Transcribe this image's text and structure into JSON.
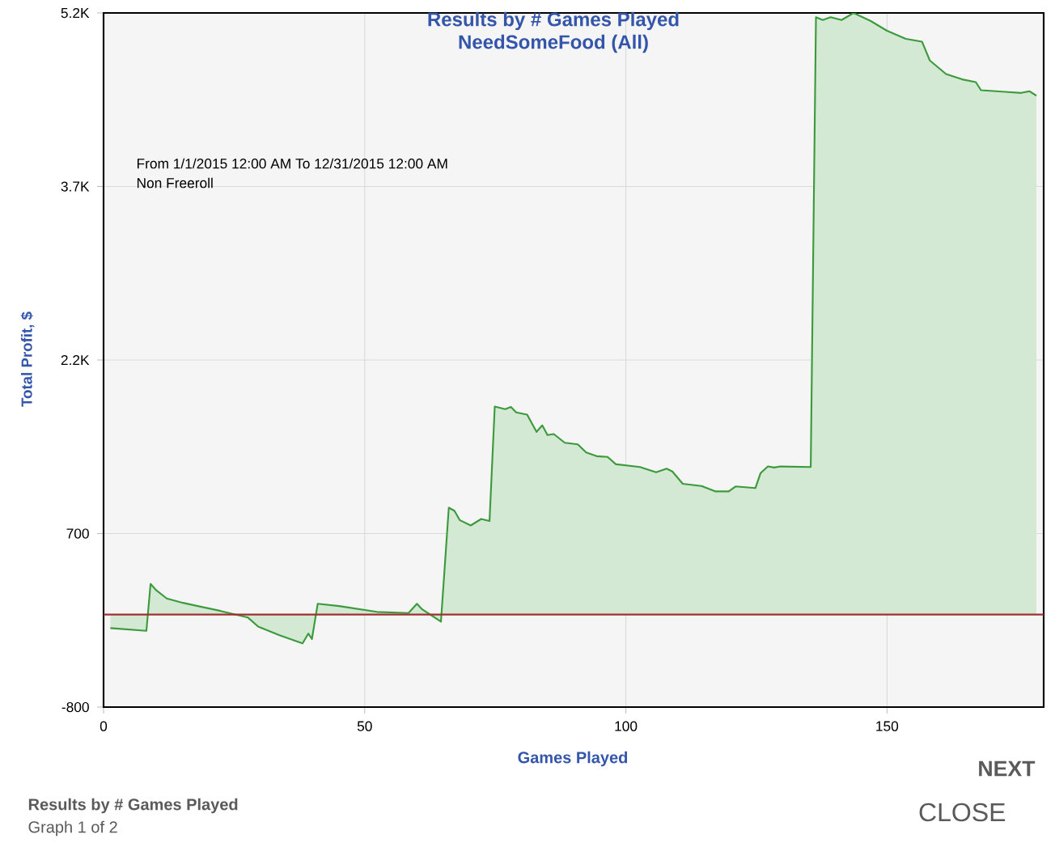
{
  "chart_data": {
    "type": "area",
    "title": "Results by # Games Played",
    "subtitle": "NeedSomeFood (All)",
    "xlabel": "Games Played",
    "ylabel": "Total Profit, $",
    "annotations": [
      "From 1/1/2015 12:00 AM To 12/31/2015 12:00 AM",
      "Non Freeroll",
      "Results by # Games Played",
      "Graph 1 of 2",
      "NEXT",
      "CLOSE"
    ],
    "x": [
      1.3,
      8.2,
      9.0,
      10.1,
      12.1,
      15.2,
      22.4,
      27.6,
      29.6,
      33.7,
      38.1,
      39.2,
      39.9,
      41.0,
      45.1,
      52.3,
      58.4,
      60.0,
      61.0,
      64.6,
      66.1,
      67.2,
      68.2,
      70.3,
      72.3,
      73.9,
      74.9,
      76.9,
      78.0,
      79.0,
      81.1,
      82.9,
      84.0,
      85.0,
      86.2,
      88.3,
      90.8,
      92.4,
      94.4,
      96.5,
      98.1,
      102.7,
      105.8,
      107.8,
      108.9,
      110.9,
      114.5,
      117.1,
      119.7,
      121.0,
      124.8,
      125.8,
      127.2,
      128.4,
      129.6,
      135.4,
      136.4,
      137.7,
      139.2,
      141.3,
      143.6,
      146.9,
      150.0,
      153.6,
      156.7,
      158.2,
      161.3,
      164.4,
      167.0,
      168.0,
      172.6,
      175.7,
      177.3,
      178.6
    ],
    "series": [
      {
        "color": "#3c9a3c",
        "values": [
          -117,
          -141,
          265,
          209,
          139,
          101,
          31,
          -25,
          -104,
          -179,
          -249,
          -165,
          -211,
          93,
          73,
          23,
          13,
          93,
          45,
          -61,
          924,
          896,
          816,
          770,
          826,
          808,
          1798,
          1775,
          1794,
          1747,
          1728,
          1579,
          1635,
          1551,
          1560,
          1485,
          1471,
          1401,
          1369,
          1363,
          1299,
          1275,
          1229,
          1261,
          1237,
          1130,
          1111,
          1065,
          1065,
          1107,
          1093,
          1223,
          1280,
          1271,
          1280,
          1275,
          5163,
          5139,
          5163,
          5139,
          5200,
          5130,
          5046,
          4976,
          4952,
          4789,
          4672,
          4626,
          4602,
          4532,
          4518,
          4509,
          4523,
          4485
        ]
      }
    ],
    "xlim": [
      0,
      180
    ],
    "ylim": [
      -800,
      5200
    ],
    "xticks": [
      0,
      50,
      100,
      150
    ],
    "yticks": [
      {
        "value": -800,
        "label": "-800"
      },
      {
        "value": 700,
        "label": "700"
      },
      {
        "value": 2200,
        "label": "2.2K"
      },
      {
        "value": 3700,
        "label": "3.7K"
      },
      {
        "value": 5200,
        "label": "5.2K"
      }
    ],
    "grid": true,
    "ref_lines": [
      {
        "axis": "y",
        "value": 0,
        "color": "#a03030"
      }
    ]
  }
}
